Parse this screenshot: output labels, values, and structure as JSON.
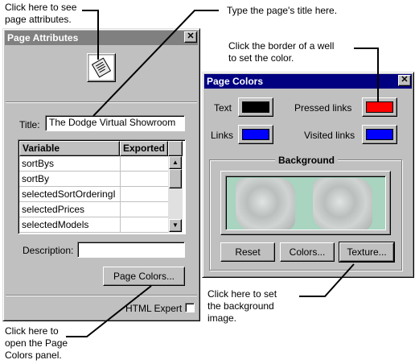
{
  "callouts": {
    "see_attributes": "Click here to see\npage attributes.",
    "type_title": "Type the page's title here.",
    "border_well": "Click the border of a well\nto set the color.",
    "open_colors": "Click here to\nopen the Page\nColors panel.",
    "set_bg_image": "Click here to set\nthe background\nimage."
  },
  "page_attributes": {
    "title_bar": "Page Attributes",
    "close_glyph": "✕",
    "title_label": "Title:",
    "title_value": "The Dodge Virtual Showroom",
    "table": {
      "headers": [
        "Variable",
        "Exported"
      ],
      "rows": [
        {
          "variable": "sortBys",
          "exported": ""
        },
        {
          "variable": "sortBy",
          "exported": ""
        },
        {
          "variable": "selectedSortOrderingI",
          "exported": ""
        },
        {
          "variable": "selectedPrices",
          "exported": ""
        },
        {
          "variable": "selectedModels",
          "exported": ""
        }
      ]
    },
    "description_label": "Description:",
    "description_value": "",
    "page_colors_button": "Page Colors...",
    "html_expert_label": "HTML Expert",
    "html_expert_checked": false
  },
  "page_colors": {
    "title_bar": "Page Colors",
    "close_glyph": "✕",
    "text_label": "Text",
    "text_color": "#000000",
    "pressed_label": "Pressed links",
    "pressed_color": "#ff0000",
    "links_label": "Links",
    "links_color": "#0000ff",
    "visited_label": "Visited links",
    "visited_color": "#0000ff",
    "background_label": "Background",
    "background_well_color": "#a8d4c0",
    "reset_button": "Reset",
    "colors_button": "Colors...",
    "texture_button": "Texture..."
  },
  "theme": {
    "titlebar_color": "#000080",
    "face_color": "#c0c0c0"
  }
}
